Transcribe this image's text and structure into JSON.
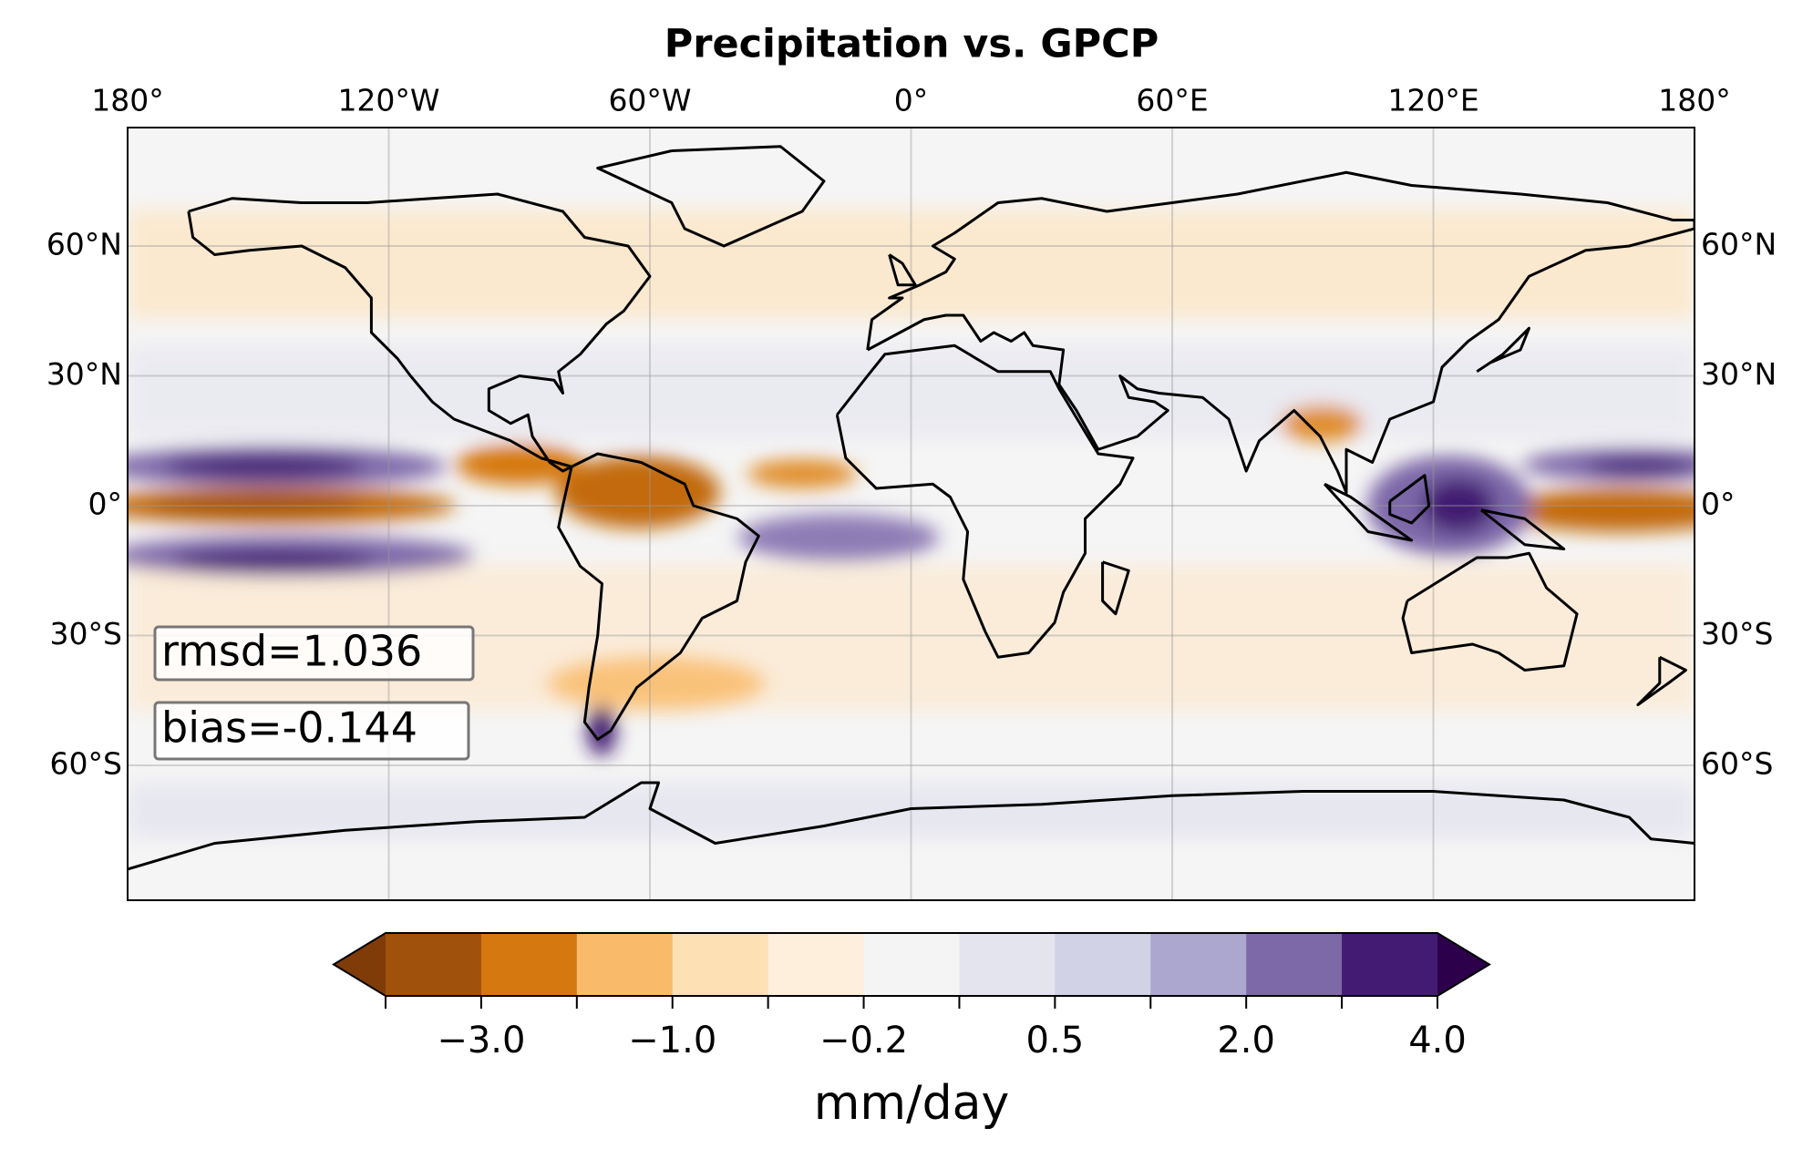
{
  "chart_data": {
    "type": "map",
    "title": "Precipitation vs. GPCP",
    "lon_ticks": [
      {
        "value": -180,
        "label": "180°"
      },
      {
        "value": -120,
        "label": "120°W"
      },
      {
        "value": -60,
        "label": "60°W"
      },
      {
        "value": 0,
        "label": "0°"
      },
      {
        "value": 60,
        "label": "60°E"
      },
      {
        "value": 120,
        "label": "120°E"
      },
      {
        "value": 180,
        "label": "180°"
      }
    ],
    "lat_ticks": [
      {
        "value": 60,
        "label": "60°N"
      },
      {
        "value": 30,
        "label": "30°N"
      },
      {
        "value": 0,
        "label": "0°"
      },
      {
        "value": -30,
        "label": "30°S"
      },
      {
        "value": -60,
        "label": "60°S"
      }
    ],
    "grid": true,
    "annotations": [
      "rmsd=1.036",
      "bias=-0.144"
    ],
    "colorbar": {
      "label": "mm/day",
      "levels": [
        -4,
        -3,
        -2,
        -1,
        -0.5,
        -0.2,
        0.2,
        0.5,
        1,
        2,
        3,
        4
      ],
      "colors": [
        "#a0520c",
        "#d5780f",
        "#f9bb6a",
        "#fde0b4",
        "#fdefdc",
        "#f4f4f4",
        "#e4e4ef",
        "#d1d2e5",
        "#aca7cf",
        "#7d68a8",
        "#431b72"
      ],
      "extend_colors": [
        "#7f3b08",
        "#2d004b"
      ],
      "ticks": [
        {
          "value": -3,
          "label": "−3.0"
        },
        {
          "value": -1,
          "label": "−1.0"
        },
        {
          "value": -0.2,
          "label": "−0.2"
        },
        {
          "value": 0.5,
          "label": "0.5"
        },
        {
          "value": 2,
          "label": "2.0"
        },
        {
          "value": 4,
          "label": "4.0"
        }
      ]
    }
  }
}
